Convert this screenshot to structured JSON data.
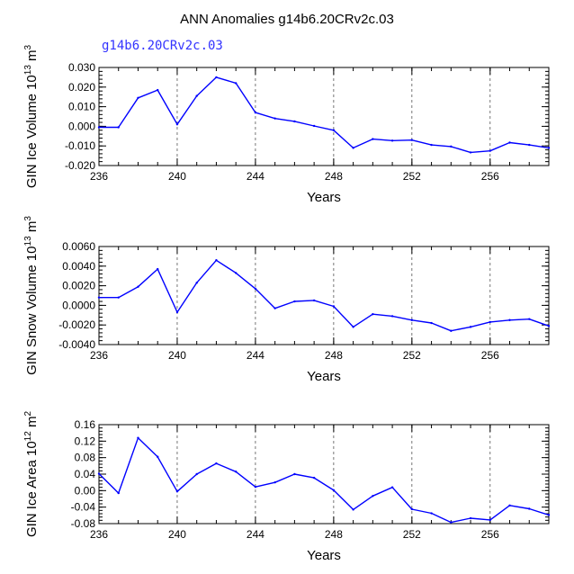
{
  "title": "ANN Anomalies g14b6.20CRv2c.03",
  "legend_label": "g14b6.20CRv2c.03",
  "colors": {
    "series": "#0000ff",
    "legend": "#3333ff",
    "axis": "#000000",
    "grid": "#555555"
  },
  "chart_data": [
    {
      "type": "line",
      "name": "ice-volume",
      "ylabel_main": "GIN Ice Volume 10",
      "ylabel_exp": "13",
      "ylabel_unit": " m",
      "ylabel_unit_exp": "3",
      "xlabel": "Years",
      "xlim": [
        236,
        259
      ],
      "ylim": [
        -0.02,
        0.03
      ],
      "x_ticks": [
        236,
        240,
        244,
        248,
        252,
        256
      ],
      "y_ticks": [
        "-0.020",
        "-0.010",
        "0.000",
        "0.010",
        "0.020",
        "0.030"
      ],
      "y_tick_values": [
        -0.02,
        -0.01,
        0.0,
        0.01,
        0.02,
        0.03
      ],
      "grid_x": [
        240,
        244,
        248,
        252,
        256
      ],
      "x": [
        236,
        237,
        238,
        239,
        240,
        241,
        242,
        243,
        244,
        245,
        246,
        247,
        248,
        249,
        250,
        251,
        252,
        253,
        254,
        255,
        256,
        257,
        258,
        259
      ],
      "values": [
        -0.0005,
        -0.0005,
        0.0145,
        0.0185,
        0.001,
        0.0155,
        0.025,
        0.022,
        0.007,
        0.004,
        0.0025,
        0.0002,
        -0.002,
        -0.011,
        -0.0065,
        -0.0073,
        -0.007,
        -0.0095,
        -0.0103,
        -0.0133,
        -0.0125,
        -0.0083,
        -0.0095,
        -0.011
      ]
    },
    {
      "type": "line",
      "name": "snow-volume",
      "ylabel_main": "GIN Snow Volume 10",
      "ylabel_exp": "13",
      "ylabel_unit": " m",
      "ylabel_unit_exp": "3",
      "xlabel": "Years",
      "xlim": [
        236,
        259
      ],
      "ylim": [
        -0.004,
        0.006
      ],
      "x_ticks": [
        236,
        240,
        244,
        248,
        252,
        256
      ],
      "y_ticks": [
        "-0.0040",
        "-0.0020",
        "0.0000",
        "0.0020",
        "0.0040",
        "0.0060"
      ],
      "y_tick_values": [
        -0.004,
        -0.002,
        0.0,
        0.002,
        0.004,
        0.006
      ],
      "grid_x": [
        240,
        244,
        248,
        252,
        256
      ],
      "x": [
        236,
        237,
        238,
        239,
        240,
        241,
        242,
        243,
        244,
        245,
        246,
        247,
        248,
        249,
        250,
        251,
        252,
        253,
        254,
        255,
        256,
        257,
        258,
        259
      ],
      "values": [
        0.0008,
        0.0008,
        0.0019,
        0.0037,
        -0.0007,
        0.0023,
        0.0046,
        0.0033,
        0.0017,
        -0.0003,
        0.0004,
        0.0005,
        -0.0001,
        -0.0022,
        -0.0009,
        -0.0011,
        -0.0015,
        -0.0018,
        -0.0026,
        -0.0022,
        -0.0017,
        -0.0015,
        -0.0014,
        -0.0021
      ]
    },
    {
      "type": "line",
      "name": "ice-area",
      "ylabel_main": "GIN Ice Area 10",
      "ylabel_exp": "12",
      "ylabel_unit": " m",
      "ylabel_unit_exp": "2",
      "xlabel": "Years",
      "xlim": [
        236,
        259
      ],
      "ylim": [
        -0.08,
        0.16
      ],
      "x_ticks": [
        236,
        240,
        244,
        248,
        252,
        256
      ],
      "y_ticks": [
        "-0.08",
        "-0.04",
        "0.00",
        "0.04",
        "0.08",
        "0.12",
        "0.16"
      ],
      "y_tick_values": [
        -0.08,
        -0.04,
        0.0,
        0.04,
        0.08,
        0.12,
        0.16
      ],
      "grid_x": [
        240,
        244,
        248,
        252,
        256
      ],
      "x": [
        236,
        237,
        238,
        239,
        240,
        241,
        242,
        243,
        244,
        245,
        246,
        247,
        248,
        249,
        250,
        251,
        252,
        253,
        254,
        255,
        256,
        257,
        258,
        259
      ],
      "values": [
        0.041,
        -0.006,
        0.128,
        0.082,
        -0.002,
        0.04,
        0.066,
        0.046,
        0.009,
        0.02,
        0.04,
        0.031,
        0.001,
        -0.046,
        -0.013,
        0.008,
        -0.045,
        -0.055,
        -0.077,
        -0.067,
        -0.071,
        -0.036,
        -0.044,
        -0.059
      ]
    }
  ]
}
